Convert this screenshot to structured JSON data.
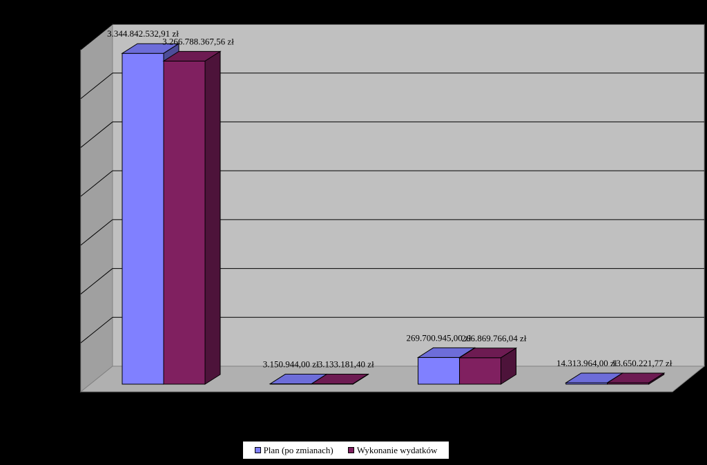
{
  "chart_data": {
    "type": "bar",
    "style": "3d-clustered",
    "categories": [
      "",
      "",
      "",
      ""
    ],
    "series": [
      {
        "name": "Plan (po zmianach)",
        "color": "#8080ff",
        "values": [
          3344842532.91,
          3150944.0,
          269700945.0,
          14313964.0
        ],
        "labels": [
          "3.344.842.532,91 zł",
          "3.150.944,00 zł",
          "269.700.945,00 zł",
          "14.313.964,00 zł"
        ]
      },
      {
        "name": "Wykonanie wydatków",
        "color": "#802060",
        "values": [
          3266788367.56,
          3133181.4,
          266869766.04,
          13650221.77
        ],
        "labels": [
          "3.266.788.367,56 zł",
          "3.133.181,40 zł",
          "266.869.766,04 zł",
          "13.650.221,77 zł"
        ]
      }
    ],
    "ylim": [
      0,
      3500000000
    ],
    "grid": true,
    "legend_position": "bottom",
    "colors": {
      "background": "#000000",
      "back_wall": "#c0c0c0",
      "side_wall": "#a0a0a0",
      "floor": "#b0b0b0",
      "gridline": "#000000"
    }
  }
}
